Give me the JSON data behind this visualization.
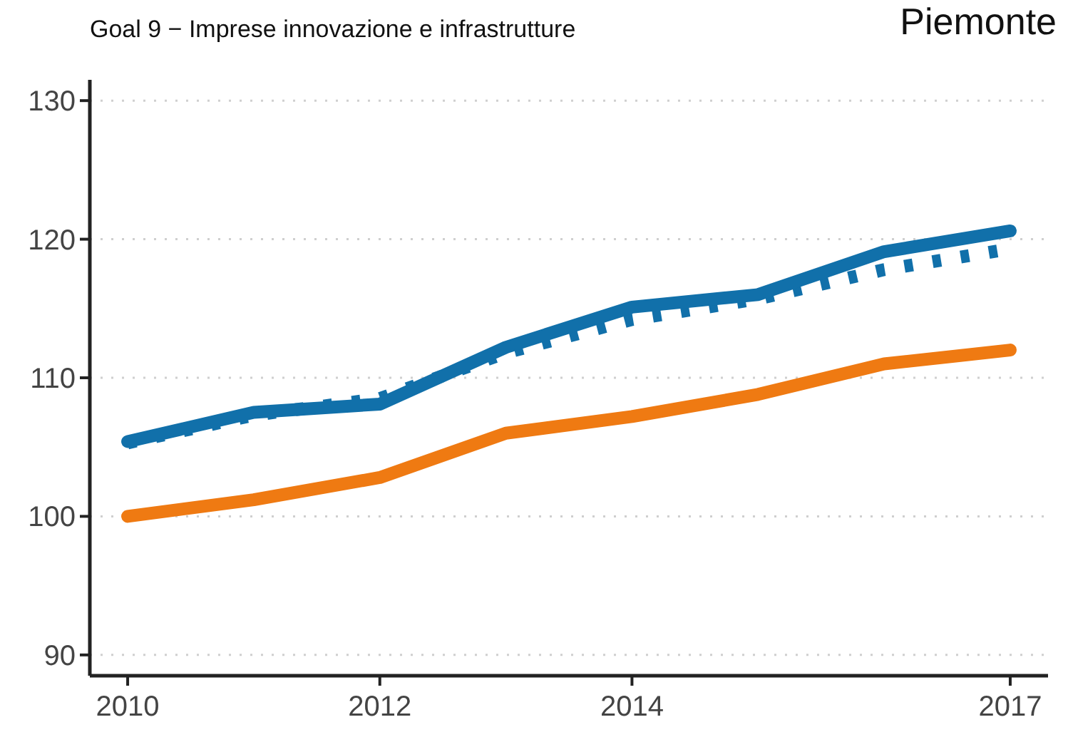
{
  "chart_data": {
    "type": "line",
    "title": "Piemonte",
    "subtitle": "Goal 9 − Imprese innovazione e infrastrutture",
    "x": [
      2010,
      2011,
      2012,
      2013,
      2014,
      2015,
      2016,
      2017
    ],
    "xlim": [
      2009.7,
      2017.3
    ],
    "xticks": [
      2010,
      2012,
      2014,
      2017
    ],
    "ylim": [
      88.5,
      131.5
    ],
    "yticks": [
      90,
      100,
      110,
      120,
      130
    ],
    "grid": "y",
    "marker": "none",
    "series": [
      {
        "color": "#1170aa",
        "values": [
          105.3,
          107.3,
          108.5,
          111.8,
          114.2,
          115.7,
          117.8,
          119.3
        ],
        "line_style": "dotted"
      },
      {
        "color": "#1170aa",
        "values": [
          105.4,
          107.5,
          108.1,
          112.2,
          115.1,
          116,
          119.1,
          120.6
        ],
        "line_style": "solid"
      },
      {
        "color": "#ef7a12",
        "values": [
          100,
          101.2,
          102.8,
          106,
          107.2,
          108.8,
          111,
          112
        ],
        "line_style": "solid"
      }
    ]
  }
}
